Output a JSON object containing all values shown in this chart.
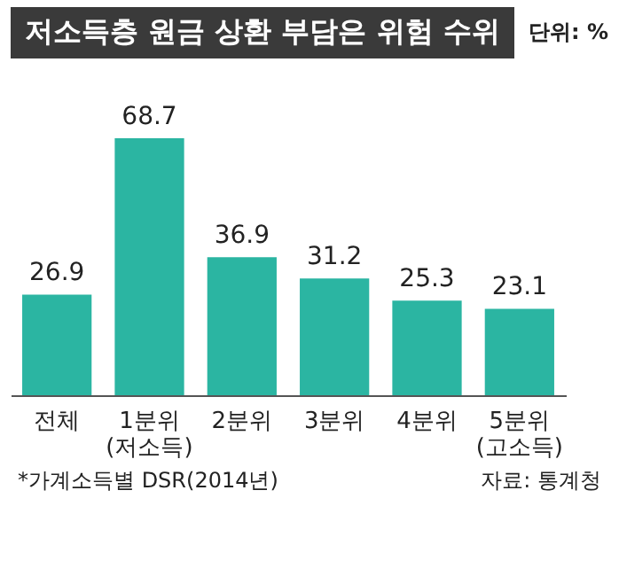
{
  "chart_data": {
    "type": "bar",
    "title": "저소득층 원금 상환 부담은 위험 수위",
    "subtitle": "단위: %",
    "categories": [
      "전체",
      "1분위\n(저소득)",
      "2분위",
      "3분위",
      "4분위",
      "5분위\n(고소득)"
    ],
    "values": [
      26.9,
      68.7,
      36.9,
      31.2,
      25.3,
      23.1
    ],
    "color": "#2bb5a2",
    "data_labels": true,
    "annotations": [
      "*가계소득별 DSR(2014년)",
      "자료: 통계청"
    ]
  }
}
